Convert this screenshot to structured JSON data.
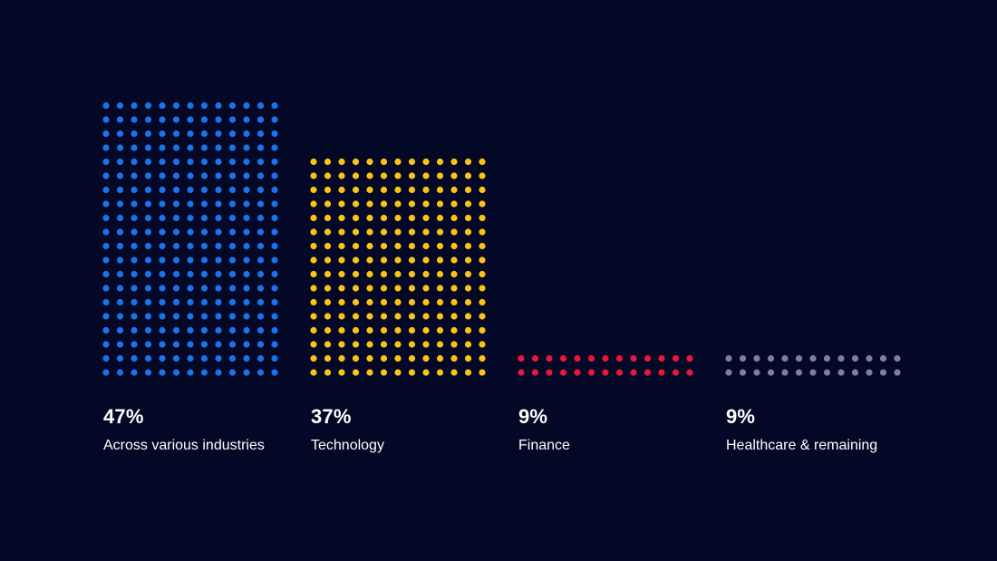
{
  "chart_data": {
    "type": "bar",
    "style": "dot-matrix",
    "categories": [
      "Across various industries",
      "Technology",
      "Finance",
      "Healthcare & remaining"
    ],
    "values": [
      47,
      37,
      9,
      9
    ],
    "value_labels": [
      "47%",
      "37%",
      "9%",
      "9%"
    ],
    "dot_rows": [
      20,
      16,
      2,
      2
    ],
    "dots_per_row": 13,
    "colors": [
      "#1a73e8",
      "#fcc419",
      "#e8173c",
      "#7d7f9c"
    ],
    "unit": "%",
    "title": "",
    "xlabel": "",
    "ylabel": ""
  },
  "background_color": "#020826"
}
